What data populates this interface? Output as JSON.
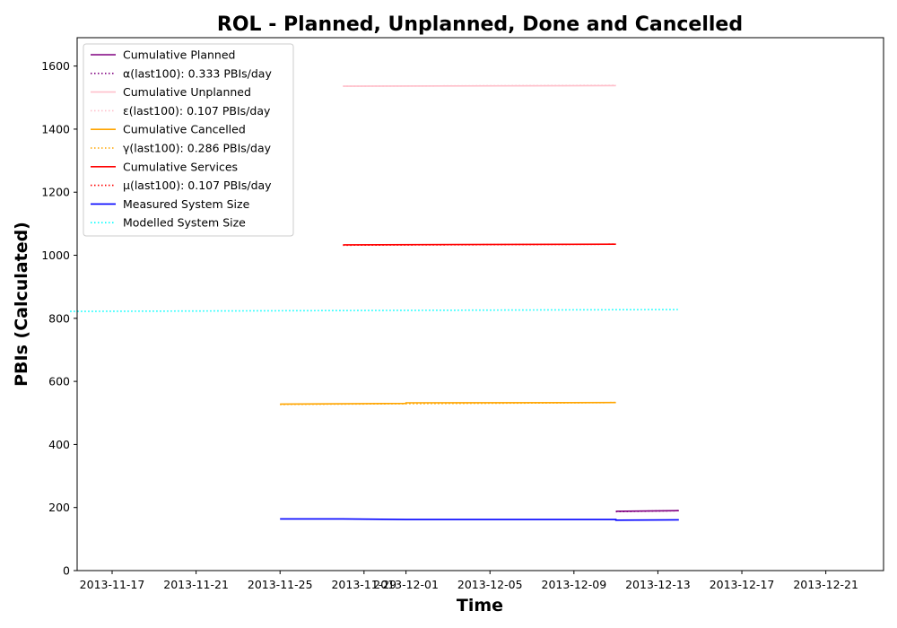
{
  "chart_data": {
    "type": "line",
    "title": "ROL - Planned, Unplanned, Done  and Cancelled",
    "xlabel": "Time",
    "ylabel": "PBIs (Calculated)",
    "xlim": [
      "2013-11-15T08:00",
      "2013-12-23T18:00"
    ],
    "ylim": [
      0,
      1690
    ],
    "x_ticks": [
      "2013-11-17",
      "2013-11-21",
      "2013-11-25",
      "2013-11-29",
      "2013-12-01",
      "2013-12-05",
      "2013-12-09",
      "2013-12-13",
      "2013-12-17",
      "2013-12-21"
    ],
    "x_tick_labels": [
      "2013-11-17",
      "2013-11-21",
      "2013-11-25",
      "2013-11-29",
      "2013-12-01",
      "2013-12-05",
      "2013-12-09",
      "2013-12-13",
      "2013-12-17",
      "2013-12-21"
    ],
    "y_ticks": [
      0,
      200,
      400,
      600,
      800,
      1000,
      1200,
      1400,
      1600
    ],
    "y_tick_labels": [
      "0",
      "200",
      "400",
      "600",
      "800",
      "1000",
      "1200",
      "1400",
      "1600"
    ],
    "grid": false,
    "legend_position": "top-left",
    "series": [
      {
        "name": "Cumulative Planned",
        "color": "#800080",
        "style": "solid",
        "x": [
          "2013-12-11",
          "2013-12-14"
        ],
        "y": [
          188,
          190
        ]
      },
      {
        "name": "α(last100): 0.333 PBIs/day",
        "color": "#800080",
        "style": "dotted",
        "x": [
          "2013-12-11",
          "2013-12-14"
        ],
        "y": [
          187,
          190
        ]
      },
      {
        "name": "Cumulative Unplanned",
        "color": "#ffc0cb",
        "style": "solid",
        "x": [
          "2013-11-28",
          "2013-12-11"
        ],
        "y": [
          1536,
          1538
        ]
      },
      {
        "name": "ε(last100): 0.107 PBIs/day",
        "color": "#ffc0cb",
        "style": "dotted",
        "x": [
          "2013-11-28",
          "2013-12-11"
        ],
        "y": [
          1536,
          1539
        ]
      },
      {
        "name": "Cumulative Cancelled",
        "color": "#ffa500",
        "style": "solid",
        "x": [
          "2013-11-25",
          "2013-12-01",
          "2013-12-01",
          "2013-12-11"
        ],
        "y": [
          528,
          530,
          532,
          533
        ]
      },
      {
        "name": "γ(last100): 0.286 PBIs/day",
        "color": "#ffa500",
        "style": "dotted",
        "x": [
          "2013-11-25",
          "2013-12-11"
        ],
        "y": [
          527,
          533
        ]
      },
      {
        "name": "Cumulative Services",
        "color": "#ff0000",
        "style": "solid",
        "x": [
          "2013-11-28",
          "2013-12-11"
        ],
        "y": [
          1033,
          1035
        ]
      },
      {
        "name": "μ(last100): 0.107 PBIs/day",
        "color": "#ff0000",
        "style": "dotted",
        "x": [
          "2013-11-28",
          "2013-12-11"
        ],
        "y": [
          1032,
          1035
        ]
      },
      {
        "name": "Measured System Size",
        "color": "#0000ff",
        "style": "solid",
        "x": [
          "2013-11-25",
          "2013-11-28",
          "2013-12-01",
          "2013-12-11",
          "2013-12-11",
          "2013-12-14"
        ],
        "y": [
          164,
          164,
          162,
          162,
          160,
          161
        ]
      },
      {
        "name": "Modelled System Size",
        "color": "#00ffff",
        "style": "dotted",
        "x": [
          "2013-11-15",
          "2013-12-14"
        ],
        "y": [
          822,
          828
        ]
      }
    ]
  }
}
